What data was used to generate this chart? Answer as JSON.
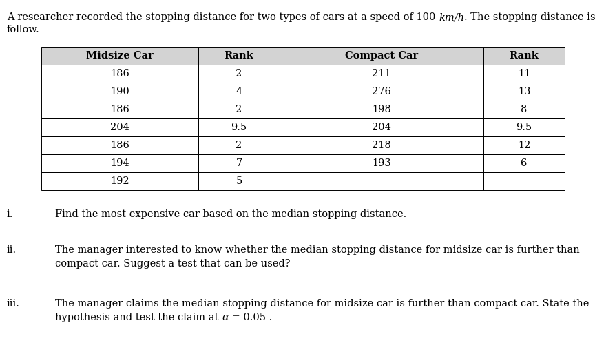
{
  "bg_color": "#ffffff",
  "text_color": "#000000",
  "header_bg": "#d3d3d3",
  "table_border_color": "#000000",
  "font_size": 10.5,
  "table": {
    "col_headers": [
      "Midsize Car",
      "Rank",
      "Compact Car",
      "Rank"
    ],
    "rows": [
      [
        "186",
        "2",
        "211",
        "11"
      ],
      [
        "190",
        "4",
        "276",
        "13"
      ],
      [
        "186",
        "2",
        "198",
        "8"
      ],
      [
        "204",
        "9.5",
        "204",
        "9.5"
      ],
      [
        "186",
        "2",
        "218",
        "12"
      ],
      [
        "194",
        "7",
        "193",
        "6"
      ],
      [
        "192",
        "5",
        "",
        ""
      ]
    ]
  },
  "intro_normal1": "A researcher recorded the stopping distance for two types of cars at a speed of 100 ",
  "intro_italic": "km/h",
  "intro_normal2": ". The stopping distance is as",
  "intro_line2": "follow.",
  "q1_label": "i.",
  "q1_text": "Find the most expensive car based on the median stopping distance.",
  "q2_label": "ii.",
  "q2_line1": "The manager interested to know whether the median stopping distance for midsize car is further than",
  "q2_line2": "compact car. Suggest a test that can be used?",
  "q3_label": "iii.",
  "q3_line1": "The manager claims the median stopping distance for midsize car is further than compact car. State the",
  "q3_line2a": "hypothesis and test the claim at ",
  "q3_alpha": "α",
  "q3_line2b": " = 0.05 ."
}
